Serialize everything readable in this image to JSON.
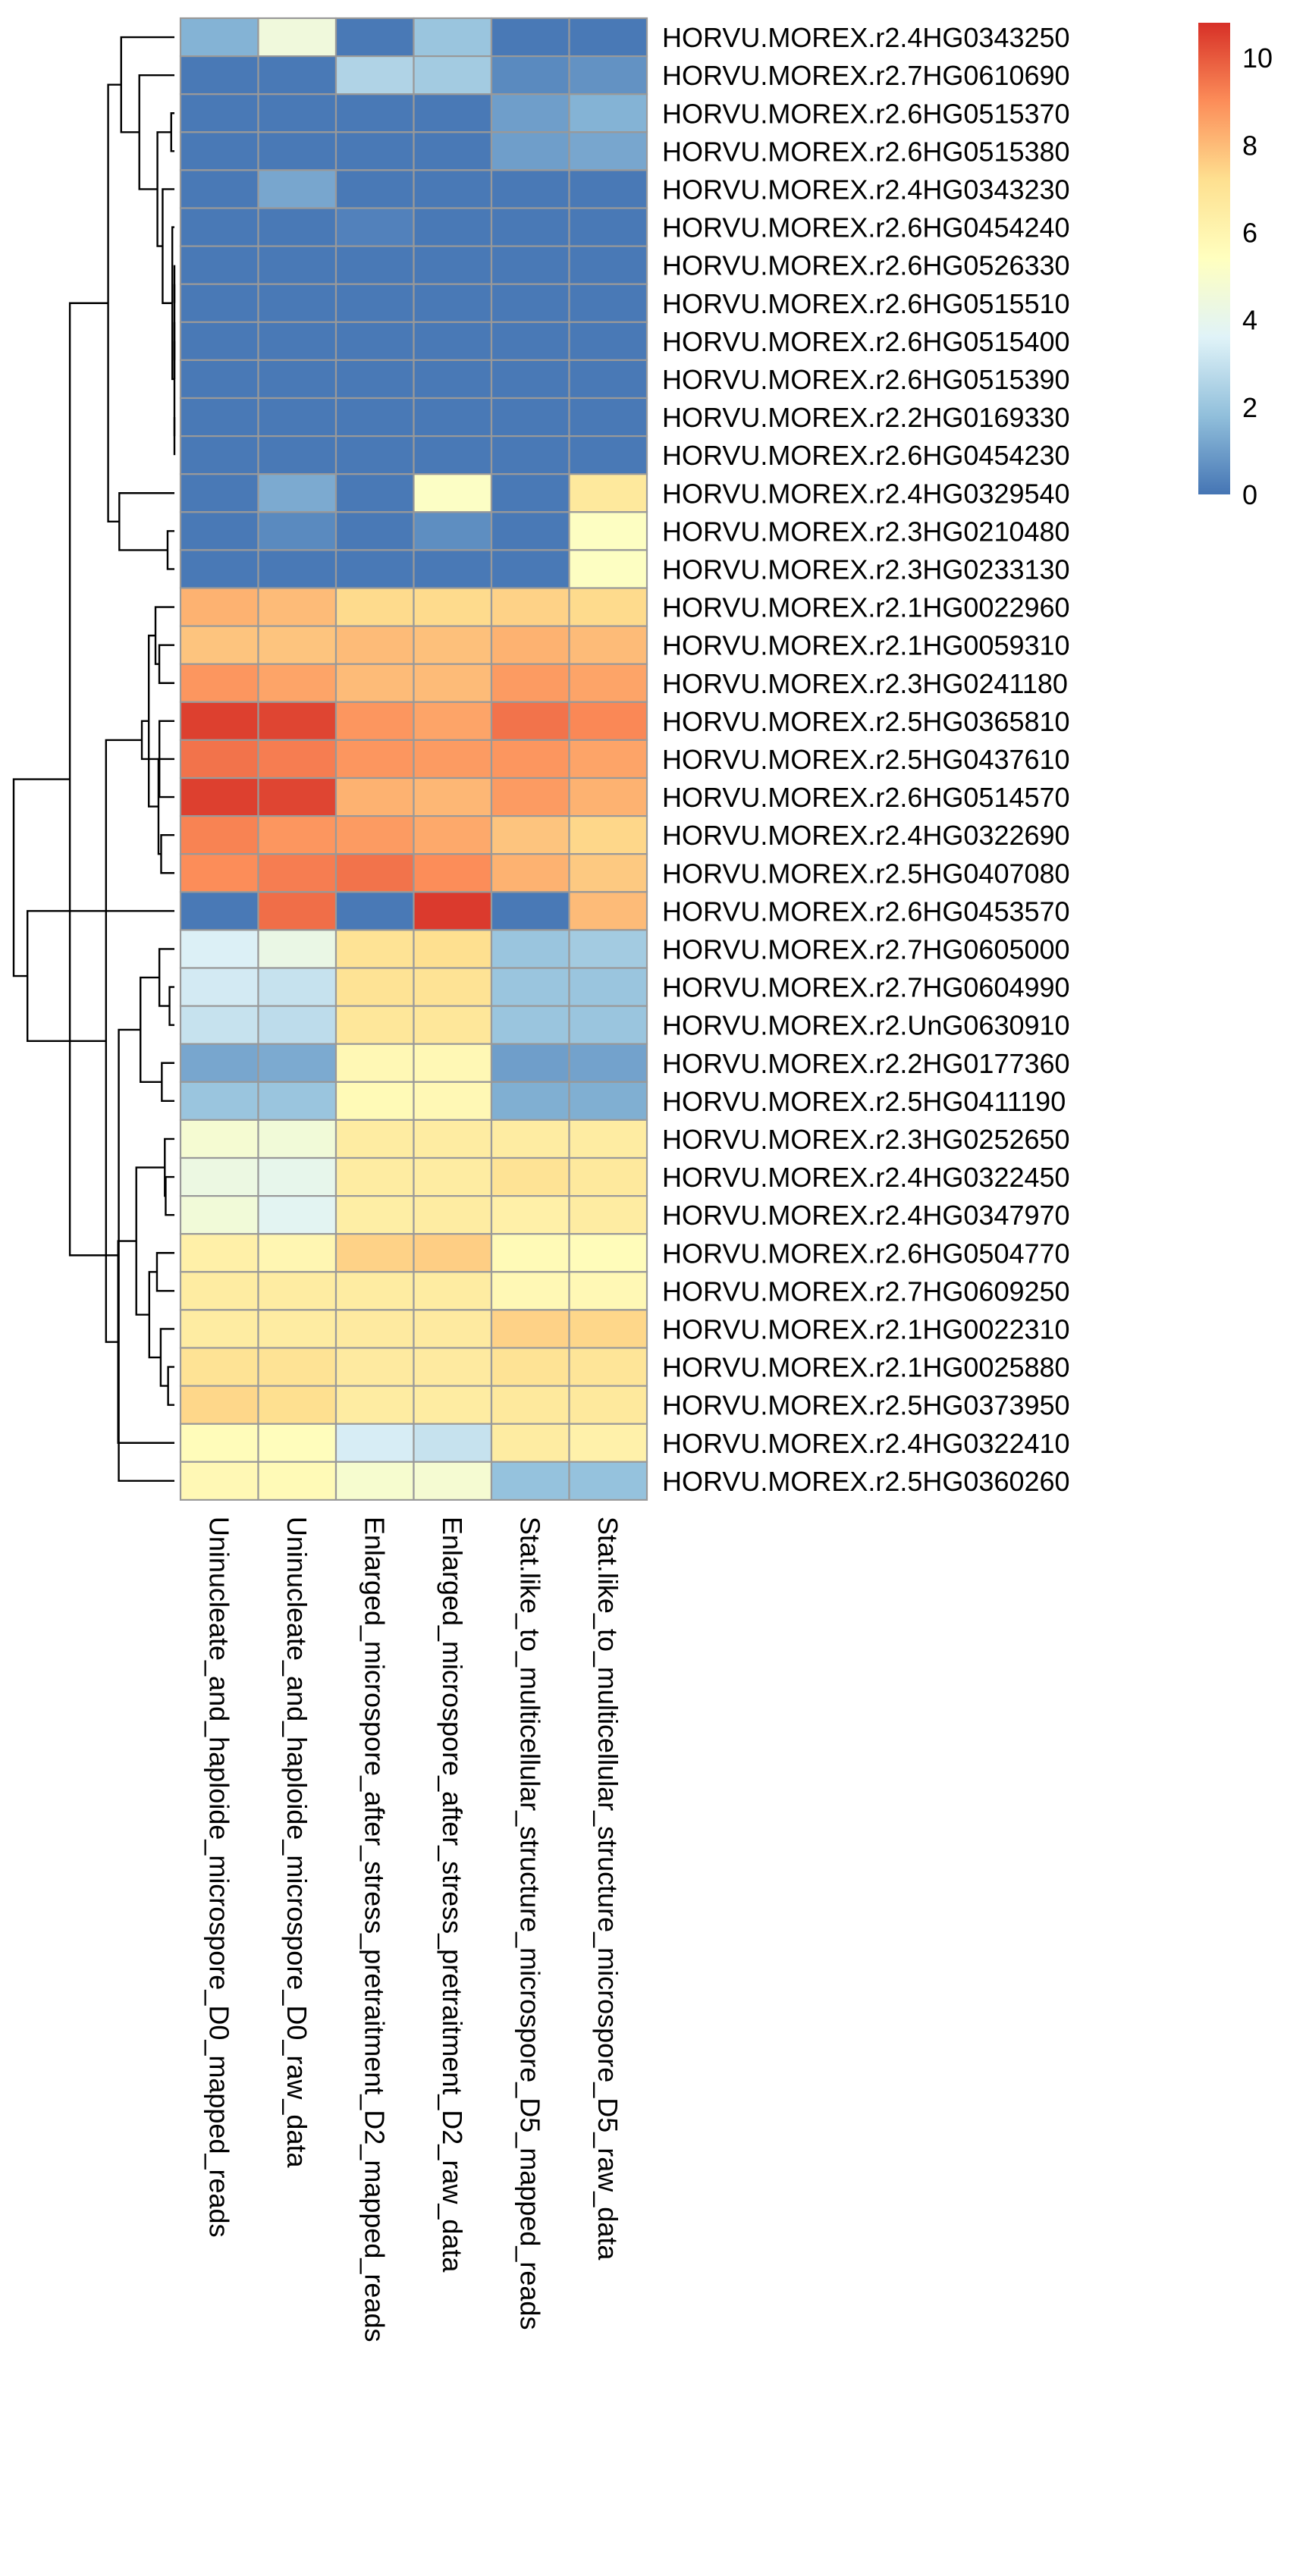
{
  "chart_data": {
    "type": "heatmap",
    "title": "",
    "xlabel": "",
    "ylabel": "",
    "columns": [
      "Uninucleate_and_haploide_microspore_D0_mapped_reads",
      "Uninucleate_and_haploide_microspore_D0_raw_data",
      "Enlarged_microspore_after_stress_pretraitment_D2_mapped_reads",
      "Enlarged_microspore_after_stress_pretraitment_D2_raw_data",
      "Stat.like_to_multicellular_structure_microspore_D5_mapped_reads",
      "Stat.like_to_multicellular_structure_microspore_D5_raw_data"
    ],
    "rows": [
      "HORVU.MOREX.r2.4HG0343250",
      "HORVU.MOREX.r2.7HG0610690",
      "HORVU.MOREX.r2.6HG0515370",
      "HORVU.MOREX.r2.6HG0515380",
      "HORVU.MOREX.r2.4HG0343230",
      "HORVU.MOREX.r2.6HG0454240",
      "HORVU.MOREX.r2.6HG0526330",
      "HORVU.MOREX.r2.6HG0515510",
      "HORVU.MOREX.r2.6HG0515400",
      "HORVU.MOREX.r2.6HG0515390",
      "HORVU.MOREX.r2.2HG0169330",
      "HORVU.MOREX.r2.6HG0454230",
      "HORVU.MOREX.r2.4HG0329540",
      "HORVU.MOREX.r2.3HG0210480",
      "HORVU.MOREX.r2.3HG0233130",
      "HORVU.MOREX.r2.1HG0022960",
      "HORVU.MOREX.r2.1HG0059310",
      "HORVU.MOREX.r2.3HG0241180",
      "HORVU.MOREX.r2.5HG0365810",
      "HORVU.MOREX.r2.5HG0437610",
      "HORVU.MOREX.r2.6HG0514570",
      "HORVU.MOREX.r2.4HG0322690",
      "HORVU.MOREX.r2.5HG0407080",
      "HORVU.MOREX.r2.6HG0453570",
      "HORVU.MOREX.r2.7HG0605000",
      "HORVU.MOREX.r2.7HG0604990",
      "HORVU.MOREX.r2.UnG0630910",
      "HORVU.MOREX.r2.2HG0177360",
      "HORVU.MOREX.r2.5HG0411190",
      "HORVU.MOREX.r2.3HG0252650",
      "HORVU.MOREX.r2.4HG0322450",
      "HORVU.MOREX.r2.4HG0347970",
      "HORVU.MOREX.r2.6HG0504770",
      "HORVU.MOREX.r2.7HG0609250",
      "HORVU.MOREX.r2.1HG0022310",
      "HORVU.MOREX.r2.1HG0025880",
      "HORVU.MOREX.r2.5HG0373950",
      "HORVU.MOREX.r2.4HG0322410",
      "HORVU.MOREX.r2.5HG0360260"
    ],
    "values": [
      [
        1.5,
        4.5,
        0.1,
        2.0,
        0.1,
        0.1
      ],
      [
        0.1,
        0.1,
        2.5,
        2.2,
        0.5,
        0.7
      ],
      [
        0.1,
        0.1,
        0.1,
        0.1,
        1.0,
        1.5
      ],
      [
        0.1,
        0.1,
        0.1,
        0.1,
        1.0,
        1.2
      ],
      [
        0.1,
        1.2,
        0.1,
        0.1,
        0.1,
        0.1
      ],
      [
        0.1,
        0.1,
        0.3,
        0.1,
        0.1,
        0.1
      ],
      [
        0.1,
        0.1,
        0.1,
        0.1,
        0.1,
        0.1
      ],
      [
        0.1,
        0.1,
        0.1,
        0.1,
        0.1,
        0.1
      ],
      [
        0.1,
        0.1,
        0.1,
        0.1,
        0.1,
        0.1
      ],
      [
        0.1,
        0.1,
        0.1,
        0.1,
        0.1,
        0.1
      ],
      [
        0.1,
        0.1,
        0.1,
        0.1,
        0.1,
        0.1
      ],
      [
        0.1,
        0.1,
        0.1,
        0.1,
        0.1,
        0.1
      ],
      [
        0.1,
        1.3,
        0.1,
        5.2,
        0.1,
        6.7
      ],
      [
        0.1,
        0.5,
        0.1,
        0.6,
        0.1,
        5.3
      ],
      [
        0.1,
        0.1,
        0.1,
        0.1,
        0.1,
        5.3
      ],
      [
        8.2,
        8.0,
        7.3,
        7.3,
        7.5,
        7.3
      ],
      [
        7.8,
        7.8,
        8.0,
        7.9,
        8.2,
        8.0
      ],
      [
        8.8,
        8.5,
        8.0,
        8.0,
        8.7,
        8.5
      ],
      [
        10.5,
        10.4,
        8.8,
        8.5,
        9.5,
        9.1
      ],
      [
        9.5,
        9.3,
        8.8,
        8.7,
        8.8,
        8.5
      ],
      [
        10.5,
        10.4,
        8.2,
        8.1,
        8.7,
        8.2
      ],
      [
        9.2,
        8.8,
        8.7,
        8.4,
        7.8,
        7.4
      ],
      [
        9.0,
        9.3,
        9.5,
        9.0,
        8.2,
        7.7
      ],
      [
        0.1,
        9.6,
        0.1,
        10.6,
        0.1,
        8.0
      ],
      [
        3.5,
        4.2,
        7.0,
        7.2,
        2.0,
        2.2
      ],
      [
        3.3,
        3.0,
        7.0,
        7.0,
        2.0,
        2.0
      ],
      [
        3.0,
        2.8,
        6.8,
        6.8,
        2.0,
        2.0
      ],
      [
        1.2,
        1.3,
        5.8,
        5.8,
        1.0,
        1.1
      ],
      [
        2.0,
        2.0,
        5.7,
        5.8,
        1.4,
        1.4
      ],
      [
        4.8,
        4.6,
        6.5,
        6.5,
        6.5,
        6.5
      ],
      [
        4.3,
        4.0,
        6.5,
        6.5,
        7.0,
        6.7
      ],
      [
        4.6,
        3.8,
        6.4,
        6.5,
        6.3,
        6.5
      ],
      [
        6.3,
        5.9,
        7.5,
        7.6,
        5.7,
        5.6
      ],
      [
        6.5,
        6.5,
        6.5,
        6.5,
        5.8,
        5.8
      ],
      [
        6.5,
        6.5,
        6.6,
        6.6,
        7.5,
        7.4
      ],
      [
        7.0,
        7.0,
        6.6,
        6.6,
        7.0,
        6.9
      ],
      [
        7.4,
        7.2,
        6.5,
        6.5,
        6.7,
        6.7
      ],
      [
        5.6,
        5.5,
        3.4,
        3.0,
        6.5,
        6.2
      ],
      [
        5.8,
        5.7,
        4.9,
        4.8,
        1.9,
        1.9
      ]
    ],
    "color_scale": {
      "min": 0,
      "max": 10.8,
      "stops": [
        "#4575b4",
        "#91bfdb",
        "#e0f3f8",
        "#ffffbf",
        "#fee090",
        "#fc8d59",
        "#d73027"
      ],
      "ticks": [
        0,
        2,
        4,
        6,
        8,
        10
      ]
    },
    "cell_border_color": "#999999",
    "legend_position": "right"
  }
}
